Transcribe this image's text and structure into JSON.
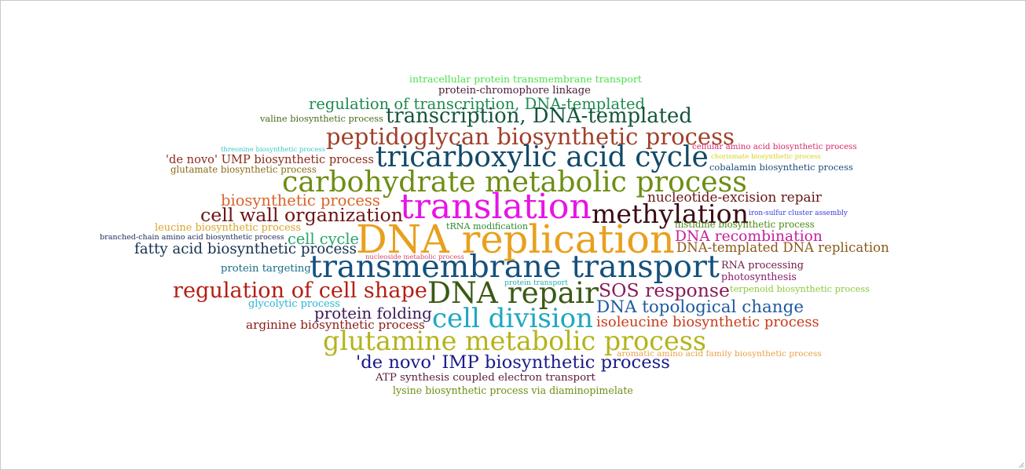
{
  "words": [
    {
      "text": "intracellular protein transmembrane transport",
      "color": "#4ae04a"
    },
    {
      "text": "protein-chromophore linkage",
      "color": "#4a1a3a"
    },
    {
      "text": "regulation of transcription, DNA-templated",
      "color": "#1e8a4e"
    },
    {
      "text": "valine biosynthetic process",
      "color": "#4a6a1a"
    },
    {
      "text": "transcription, DNA-templated",
      "color": "#14553a"
    },
    {
      "text": "peptidoglycan biosynthetic process",
      "color": "#a0402a"
    },
    {
      "text": "threonine biosynthetic process",
      "color": "#3ac8c8"
    },
    {
      "text": "cellular amino acid biosynthetic process",
      "color": "#d42a6a"
    },
    {
      "text": "'de novo' UMP biosynthetic process",
      "color": "#8a2a1a"
    },
    {
      "text": "tricarboxylic acid cycle",
      "color": "#124a68"
    },
    {
      "text": "chorismate biosynthetic process",
      "color": "#d4d41a"
    },
    {
      "text": "glutamate biosynthetic process",
      "color": "#8a6a14"
    },
    {
      "text": "cobalamin biosynthetic process",
      "color": "#1a4a7a"
    },
    {
      "text": "carbohydrate metabolic process",
      "color": "#6e8e14"
    },
    {
      "text": "biosynthetic process",
      "color": "#d8642a"
    },
    {
      "text": "nucleotide-excision repair",
      "color": "#6a1414"
    },
    {
      "text": "translation",
      "color": "#e614e6"
    },
    {
      "text": "methylation",
      "color": "#3a0a14"
    },
    {
      "text": "cell wall organization",
      "color": "#6e1414"
    },
    {
      "text": "iron-sulfur cluster assembly",
      "color": "#3a3ae0"
    },
    {
      "text": "leucine biosynthetic process",
      "color": "#d8a42a"
    },
    {
      "text": "tRNA modification",
      "color": "#2a8a2a"
    },
    {
      "text": "histidine biosynthetic process",
      "color": "#4a8a14"
    },
    {
      "text": "branched-chain amino acid biosynthetic process",
      "color": "#1a2a5a"
    },
    {
      "text": "cell cycle",
      "color": "#2aa46e"
    },
    {
      "text": "DNA replication",
      "color": "#e8a01e"
    },
    {
      "text": "DNA recombination",
      "color": "#c81ea0"
    },
    {
      "text": "fatty acid biosynthetic process",
      "color": "#143250"
    },
    {
      "text": "DNA-templated DNA replication",
      "color": "#8a5a1a"
    },
    {
      "text": "nucleoside metabolic process",
      "color": "#d8466e"
    },
    {
      "text": "protein targeting",
      "color": "#1a6e8a"
    },
    {
      "text": "transmembrane transport",
      "color": "#14507e"
    },
    {
      "text": "RNA processing",
      "color": "#6e1a4a"
    },
    {
      "text": "photosynthesis",
      "color": "#8a1a6e"
    },
    {
      "text": "protein transport",
      "color": "#2ab0b0"
    },
    {
      "text": "regulation of cell shape",
      "color": "#b41e14"
    },
    {
      "text": "DNA repair",
      "color": "#3a5a14"
    },
    {
      "text": "SOS response",
      "color": "#8a1a5a"
    },
    {
      "text": "terpenoid biosynthetic process",
      "color": "#8ac83a"
    },
    {
      "text": "glycolytic process",
      "color": "#2ab4d4"
    },
    {
      "text": "DNA topological change",
      "color": "#1e5aa0"
    },
    {
      "text": "protein folding",
      "color": "#3a1a5a"
    },
    {
      "text": "cell division",
      "color": "#1ea8c0"
    },
    {
      "text": "isoleucine biosynthetic process",
      "color": "#c83a1a"
    },
    {
      "text": "arginine biosynthetic process",
      "color": "#8a1a14"
    },
    {
      "text": "glutamine metabolic process",
      "color": "#b4b41e"
    },
    {
      "text": "aromatic amino acid family biosynthetic process",
      "color": "#e8a046"
    },
    {
      "text": "'de novo' IMP biosynthetic process",
      "color": "#1a1a8a"
    },
    {
      "text": "ATP synthesis coupled electron transport",
      "color": "#5a1a3a"
    },
    {
      "text": "lysine biosynthetic process via diaminopimelate",
      "color": "#6e8e14"
    }
  ]
}
